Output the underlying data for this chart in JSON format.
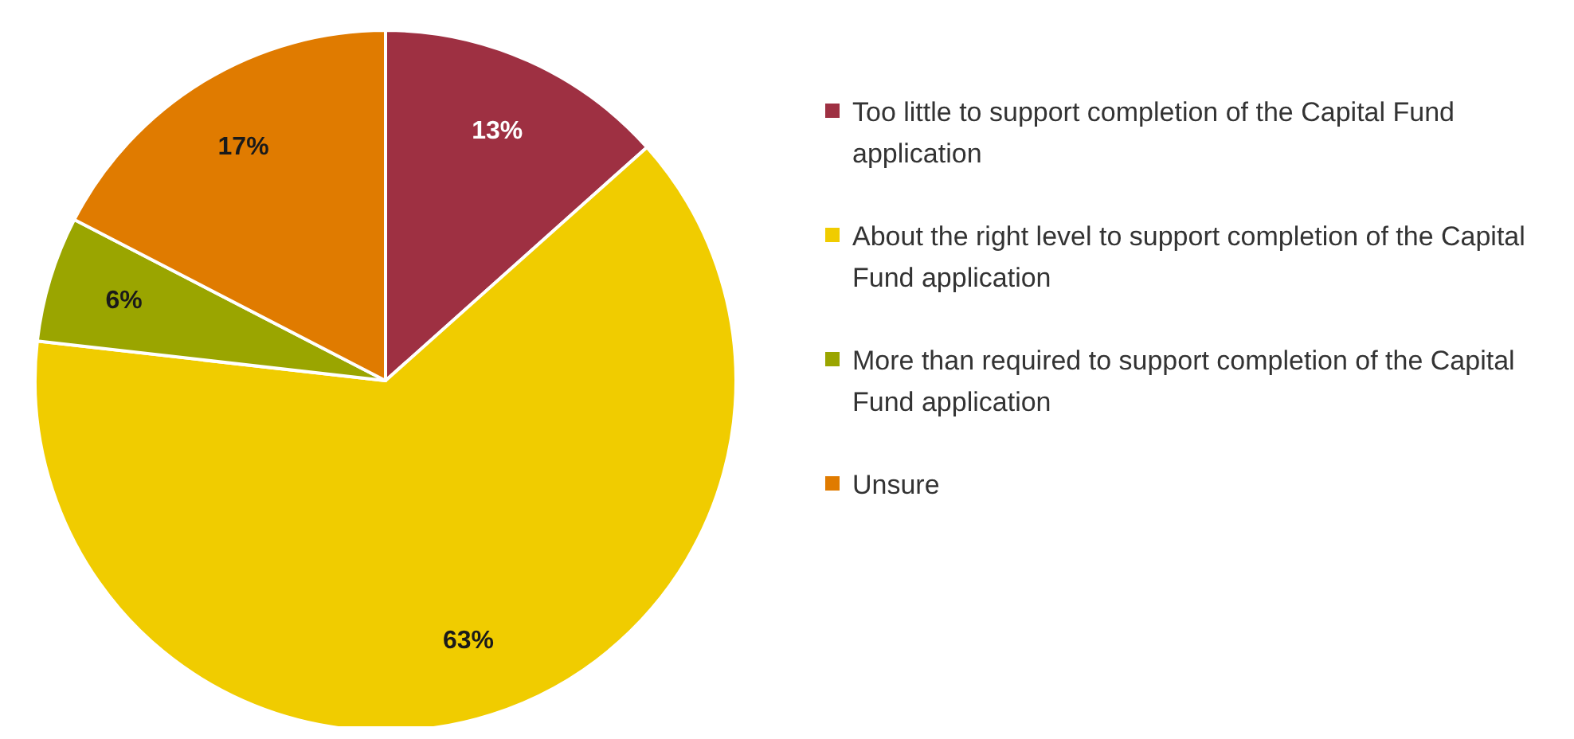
{
  "chart_data": {
    "type": "pie",
    "categories": [
      "Too little to support completion of the Capital Fund application",
      "About the right level to support completion of the Capital Fund application",
      "More than required to support completion of the Capital Fund application",
      "Unsure"
    ],
    "values": [
      13.4,
      63.4,
      5.8,
      17.4
    ],
    "colors": [
      "#9e3042",
      "#f0cc00",
      "#9aa500",
      "#e07b00"
    ],
    "value_labels": [
      "13%",
      "63%",
      "6%",
      "17%"
    ],
    "legend": "right"
  }
}
